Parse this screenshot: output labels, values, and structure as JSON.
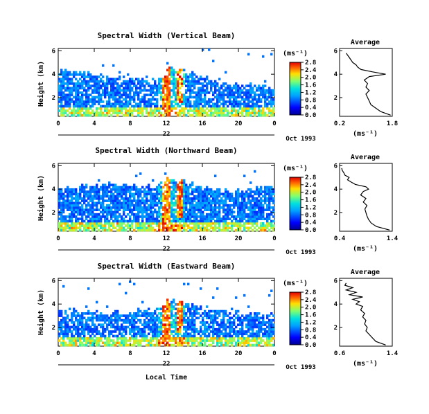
{
  "figure": {
    "x_common_label": "Local Time",
    "unit_label": "(ms⁻¹)",
    "month_label": "Oct 1993",
    "avg_xlabel": "(ms⁻¹)",
    "avg_title": "Average",
    "ylabel": "Height (km)"
  },
  "chart_data": [
    {
      "type": "heatmap",
      "title": "Spectral Width (Vertical Beam)",
      "xlabel": "",
      "ylabel": "Height (km)",
      "x_ticks": [
        "0",
        "4",
        "8",
        "12",
        "16",
        "20",
        "0"
      ],
      "day_label": "22",
      "y_ticks": [
        "2",
        "4",
        "6"
      ],
      "xlim": [
        0,
        24
      ],
      "ylim": [
        0.4,
        6.2
      ],
      "colorbar": {
        "ticks": [
          "0.0",
          "0.4",
          "0.8",
          "1.2",
          "1.6",
          "2.0",
          "2.4",
          "2.8"
        ],
        "range": [
          0,
          2.8
        ]
      },
      "echo_top_km": [
        4.4,
        4.3,
        4.2,
        4.1,
        3.9,
        3.8,
        3.8,
        3.7,
        3.6,
        3.6,
        3.5,
        3.8,
        4.6,
        4.4,
        4.1,
        3.8,
        3.6,
        3.4,
        3.3,
        3.2,
        3.1,
        3.1,
        3.0,
        2.9
      ],
      "average_profile": {
        "title": "Average",
        "xlim": [
          0.2,
          1.8
        ],
        "x_ticks": [
          "0.2",
          "1.8"
        ],
        "y_ticks": [
          "2",
          "4",
          "6"
        ],
        "height_km": [
          0.5,
          0.8,
          1.1,
          1.4,
          1.7,
          2.0,
          2.3,
          2.6,
          2.9,
          3.2,
          3.5,
          3.8,
          4.0,
          4.2,
          4.4,
          4.6,
          4.8,
          5.0,
          5.2,
          5.4,
          5.6,
          5.8
        ],
        "width_ms": [
          1.75,
          1.45,
          1.3,
          1.15,
          1.1,
          1.05,
          1.0,
          1.1,
          1.0,
          1.05,
          0.95,
          1.1,
          1.6,
          1.2,
          0.85,
          0.75,
          0.7,
          0.6,
          0.55,
          0.5,
          0.45,
          0.4
        ]
      }
    },
    {
      "type": "heatmap",
      "title": "Spectral Width (Northward Beam)",
      "xlabel": "",
      "ylabel": "Height (km)",
      "x_ticks": [
        "0",
        "4",
        "8",
        "12",
        "16",
        "20",
        "0"
      ],
      "day_label": "22",
      "y_ticks": [
        "2",
        "4",
        "6"
      ],
      "xlim": [
        0,
        24
      ],
      "ylim": [
        0.4,
        6.2
      ],
      "colorbar": {
        "ticks": [
          "0.0",
          "0.4",
          "0.8",
          "1.2",
          "1.6",
          "2.0",
          "2.4",
          "2.8"
        ],
        "range": [
          0,
          2.8
        ]
      },
      "echo_top_km": [
        4.0,
        4.1,
        4.2,
        4.3,
        4.4,
        4.5,
        4.5,
        4.4,
        4.3,
        4.2,
        4.2,
        4.6,
        5.0,
        4.7,
        4.5,
        4.3,
        4.1,
        4.0,
        3.9,
        3.9,
        3.8,
        4.0,
        4.1,
        4.2
      ],
      "average_profile": {
        "title": "Average",
        "xlim": [
          0.4,
          1.4
        ],
        "x_ticks": [
          "0.4",
          "1.4"
        ],
        "y_ticks": [
          "2",
          "4",
          "6"
        ],
        "height_km": [
          0.5,
          0.8,
          1.1,
          1.4,
          1.7,
          2.0,
          2.3,
          2.6,
          2.9,
          3.2,
          3.5,
          3.8,
          4.0,
          4.2,
          4.4,
          4.6,
          4.8,
          5.0,
          5.2,
          5.4,
          5.6,
          5.8
        ],
        "width_ms": [
          1.35,
          1.1,
          1.0,
          0.95,
          0.92,
          0.9,
          0.88,
          0.92,
          0.85,
          0.9,
          0.8,
          0.85,
          0.95,
          0.9,
          0.7,
          0.62,
          0.55,
          0.58,
          0.5,
          0.48,
          0.45,
          0.44
        ]
      }
    },
    {
      "type": "heatmap",
      "title": "Spectral Width (Eastward Beam)",
      "xlabel": "Local Time",
      "ylabel": "Height (km)",
      "x_ticks": [
        "0",
        "4",
        "8",
        "12",
        "16",
        "20",
        "0"
      ],
      "day_label": "22",
      "y_ticks": [
        "2",
        "4",
        "6"
      ],
      "xlim": [
        0,
        24
      ],
      "ylim": [
        0.4,
        6.2
      ],
      "colorbar": {
        "ticks": [
          "0.0",
          "0.4",
          "0.8",
          "1.2",
          "1.6",
          "2.0",
          "2.4",
          "2.8"
        ],
        "range": [
          0,
          2.8
        ]
      },
      "echo_top_km": [
        3.6,
        3.5,
        3.4,
        3.4,
        3.3,
        3.3,
        3.3,
        3.3,
        3.4,
        3.4,
        3.5,
        3.9,
        4.4,
        4.1,
        3.9,
        3.7,
        3.6,
        3.5,
        3.4,
        3.3,
        3.2,
        3.2,
        3.1,
        3.1
      ],
      "average_profile": {
        "title": "Average",
        "xlim": [
          0.6,
          1.4
        ],
        "x_ticks": [
          "0.6",
          "1.4"
        ],
        "y_ticks": [
          "2",
          "4",
          "6"
        ],
        "height_km": [
          0.5,
          0.8,
          1.1,
          1.4,
          1.7,
          2.0,
          2.3,
          2.6,
          2.9,
          3.2,
          3.5,
          3.8,
          4.0,
          4.2,
          4.4,
          4.6,
          4.8,
          5.0,
          5.2,
          5.4,
          5.6,
          5.8
        ],
        "width_ms": [
          1.3,
          1.15,
          1.1,
          1.05,
          1.0,
          1.02,
          0.98,
          1.0,
          0.95,
          0.98,
          0.92,
          0.95,
          0.85,
          0.9,
          0.8,
          0.95,
          0.75,
          0.85,
          0.7,
          0.8,
          0.68,
          0.7
        ]
      }
    }
  ]
}
